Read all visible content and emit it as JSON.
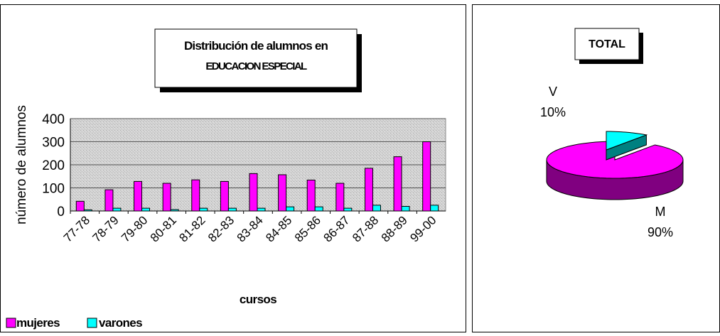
{
  "chart_data": [
    {
      "type": "bar",
      "title_line1": "Distribución de alumnos en",
      "title_line2": "EDUCACION ESPECIAL",
      "xlabel": "cursos",
      "ylabel": "número de alumnos",
      "ylim": [
        0,
        400
      ],
      "yticks": [
        "0",
        "100",
        "200",
        "300",
        "400"
      ],
      "grid": true,
      "legend_position": "bottom-left",
      "categories": [
        "77-78",
        "78-79",
        "79-80",
        "80-81",
        "81-82",
        "82-83",
        "83-84",
        "84-85",
        "85-86",
        "86-87",
        "87-88",
        "88-89",
        "99-00"
      ],
      "series": [
        {
          "name": "mujeres",
          "color": "#ff00ff",
          "values": [
            42,
            92,
            128,
            120,
            135,
            128,
            162,
            157,
            134,
            120,
            185,
            235,
            300
          ]
        },
        {
          "name": "varones",
          "color": "#00ffff",
          "values": [
            5,
            12,
            12,
            6,
            12,
            12,
            12,
            18,
            18,
            12,
            25,
            20,
            25
          ]
        }
      ]
    },
    {
      "type": "pie",
      "title": "TOTAL",
      "slices": [
        {
          "name": "M",
          "value": 90,
          "label": "90%",
          "color": "#ff00ff",
          "side_color": "#800080"
        },
        {
          "name": "V",
          "value": 10,
          "label": "10%",
          "color": "#00ffff",
          "side_color": "#008080"
        }
      ]
    }
  ]
}
